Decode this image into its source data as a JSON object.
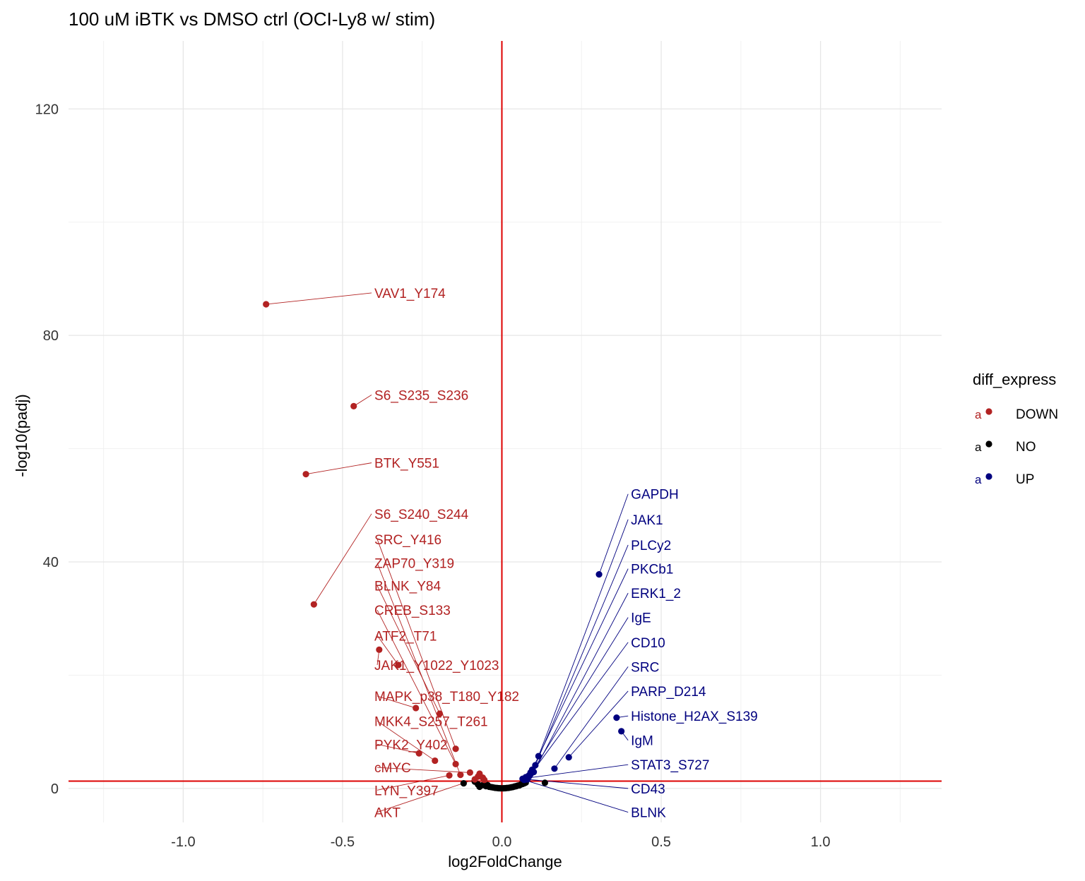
{
  "chart_data": {
    "type": "scatter",
    "title": "100 uM iBTK vs DMSO ctrl (OCI-Ly8 w/ stim)",
    "xlabel": "log2FoldChange",
    "ylabel": "-log10(padj)",
    "xlim": [
      -1.36,
      1.38
    ],
    "ylim": [
      -6,
      132
    ],
    "x_ticks": [
      -1.0,
      -0.5,
      0.0,
      0.5,
      1.0
    ],
    "x_tick_labels": [
      "-1.0",
      "-0.5",
      "0.0",
      "0.5",
      "1.0"
    ],
    "y_ticks": [
      0,
      40,
      80,
      120
    ],
    "y_tick_labels": [
      "0",
      "40",
      "80",
      "120"
    ],
    "grid": true,
    "threshold_lines": {
      "x": 0,
      "y": 1.3,
      "color": "#dd0000"
    },
    "legend": {
      "title": "diff_express",
      "position": "right",
      "glyph_text": "a",
      "entries": [
        {
          "label": "DOWN",
          "color": "#b22222"
        },
        {
          "label": "NO",
          "color": "#000000"
        },
        {
          "label": "UP",
          "color": "#00007f"
        }
      ]
    },
    "series": [
      {
        "name": "DOWN",
        "color": "#b22222",
        "points": [
          {
            "x": -0.74,
            "y": 85.5,
            "label": "VAV1_Y174",
            "lx": -0.4,
            "ly": 87.5
          },
          {
            "x": -0.465,
            "y": 67.5,
            "label": "S6_S235_S236",
            "lx": -0.4,
            "ly": 69.5
          },
          {
            "x": -0.615,
            "y": 55.5,
            "label": "BTK_Y551",
            "lx": -0.4,
            "ly": 57.5
          },
          {
            "x": -0.59,
            "y": 32.5,
            "label": "S6_S240_S244",
            "lx": -0.4,
            "ly": 48.5
          },
          {
            "x": -0.145,
            "y": 7.0,
            "label": "SRC_Y416",
            "lx": -0.4,
            "ly": 44.0
          },
          {
            "x": -0.13,
            "y": 2.4,
            "label": "ZAP70_Y319",
            "lx": -0.4,
            "ly": 39.8
          },
          {
            "x": -0.195,
            "y": 13.2,
            "label": "BLNK_Y84",
            "lx": -0.4,
            "ly": 35.8
          },
          {
            "x": -0.145,
            "y": 4.3,
            "label": "CREB_S133",
            "lx": -0.4,
            "ly": 31.5
          },
          {
            "x": -0.325,
            "y": 21.8,
            "label": "ATF2_T71",
            "lx": -0.4,
            "ly": 27.0
          },
          {
            "x": -0.385,
            "y": 24.5,
            "label": "JAK1_Y1022_Y1023",
            "lx": -0.4,
            "ly": 21.8
          },
          {
            "x": -0.27,
            "y": 14.2,
            "label": "MAPK_p38_T180_Y182",
            "lx": -0.4,
            "ly": 16.3
          },
          {
            "x": -0.21,
            "y": 4.9,
            "label": "MKK4_S257_T261",
            "lx": -0.4,
            "ly": 11.9
          },
          {
            "x": -0.26,
            "y": 6.2,
            "label": "PYK2_Y402",
            "lx": -0.4,
            "ly": 7.8
          },
          {
            "x": -0.1,
            "y": 2.8,
            "label": "cMYC",
            "lx": -0.4,
            "ly": 3.7
          },
          {
            "x": -0.165,
            "y": 2.3,
            "label": "LYN_Y397",
            "lx": -0.4,
            "ly": -0.3
          },
          {
            "x": -0.085,
            "y": 1.6,
            "label": "AKT",
            "lx": -0.4,
            "ly": -4.2
          },
          {
            "x": -0.07,
            "y": 2.6
          },
          {
            "x": -0.075,
            "y": 2.1
          },
          {
            "x": -0.06,
            "y": 1.9
          },
          {
            "x": -0.055,
            "y": 1.5
          }
        ]
      },
      {
        "name": "NO",
        "color": "#000000",
        "points": [
          {
            "x": -0.12,
            "y": 0.9
          },
          {
            "x": -0.075,
            "y": 0.7
          },
          {
            "x": -0.07,
            "y": 0.3
          },
          {
            "x": -0.06,
            "y": 0.6
          },
          {
            "x": -0.05,
            "y": 0.4
          },
          {
            "x": -0.045,
            "y": 0.6
          },
          {
            "x": -0.04,
            "y": 0.3
          },
          {
            "x": -0.035,
            "y": 0.25
          },
          {
            "x": -0.03,
            "y": 0.2
          },
          {
            "x": -0.025,
            "y": 0.15
          },
          {
            "x": -0.02,
            "y": 0.1
          },
          {
            "x": -0.015,
            "y": 0.08
          },
          {
            "x": -0.01,
            "y": 0.05
          },
          {
            "x": -0.005,
            "y": 0.03
          },
          {
            "x": 0.0,
            "y": 0.02
          },
          {
            "x": 0.005,
            "y": 0.03
          },
          {
            "x": 0.01,
            "y": 0.05
          },
          {
            "x": 0.015,
            "y": 0.08
          },
          {
            "x": 0.02,
            "y": 0.1
          },
          {
            "x": 0.025,
            "y": 0.15
          },
          {
            "x": 0.03,
            "y": 0.2
          },
          {
            "x": 0.035,
            "y": 0.25
          },
          {
            "x": 0.04,
            "y": 0.35
          },
          {
            "x": 0.045,
            "y": 0.4
          },
          {
            "x": 0.05,
            "y": 0.5
          },
          {
            "x": 0.055,
            "y": 0.55
          },
          {
            "x": 0.06,
            "y": 0.7
          },
          {
            "x": 0.065,
            "y": 0.8
          },
          {
            "x": 0.07,
            "y": 0.9
          },
          {
            "x": 0.075,
            "y": 1.05
          },
          {
            "x": 0.135,
            "y": 1.0
          },
          {
            "x": -0.085,
            "y": 1.2
          }
        ]
      },
      {
        "name": "UP",
        "color": "#00007f",
        "points": [
          {
            "x": 0.305,
            "y": 37.8,
            "label": "GAPDH",
            "lx": 0.405,
            "ly": 52.0
          },
          {
            "x": 0.115,
            "y": 5.7,
            "label": "JAK1",
            "lx": 0.405,
            "ly": 47.5
          },
          {
            "x": 0.105,
            "y": 4.1,
            "label": "PLCy2",
            "lx": 0.405,
            "ly": 43.0
          },
          {
            "x": 0.095,
            "y": 3.3,
            "label": "PKCb1",
            "lx": 0.405,
            "ly": 38.8
          },
          {
            "x": 0.1,
            "y": 2.9,
            "label": "ERK1_2",
            "lx": 0.405,
            "ly": 34.5
          },
          {
            "x": 0.09,
            "y": 2.5,
            "label": "IgE",
            "lx": 0.405,
            "ly": 30.2
          },
          {
            "x": 0.085,
            "y": 2.1,
            "label": "CD10",
            "lx": 0.405,
            "ly": 25.8
          },
          {
            "x": 0.165,
            "y": 3.5,
            "label": "SRC",
            "lx": 0.405,
            "ly": 21.5
          },
          {
            "x": 0.21,
            "y": 5.5,
            "label": "PARP_D214",
            "lx": 0.405,
            "ly": 17.2
          },
          {
            "x": 0.36,
            "y": 12.5,
            "label": "Histone_H2AX_S139",
            "lx": 0.405,
            "ly": 12.8
          },
          {
            "x": 0.375,
            "y": 10.1,
            "label": "IgM",
            "lx": 0.405,
            "ly": 8.5
          },
          {
            "x": 0.075,
            "y": 1.8,
            "label": "STAT3_S727",
            "lx": 0.405,
            "ly": 4.2
          },
          {
            "x": 0.08,
            "y": 1.6,
            "label": "CD43",
            "lx": 0.405,
            "ly": 0.0
          },
          {
            "x": 0.07,
            "y": 1.5,
            "label": "BLNK",
            "lx": 0.405,
            "ly": -4.2
          },
          {
            "x": 0.065,
            "y": 1.7
          },
          {
            "x": 0.085,
            "y": 2.3
          },
          {
            "x": 0.09,
            "y": 2.8
          },
          {
            "x": 0.075,
            "y": 2.0
          },
          {
            "x": 0.095,
            "y": 3.0
          }
        ]
      }
    ]
  }
}
